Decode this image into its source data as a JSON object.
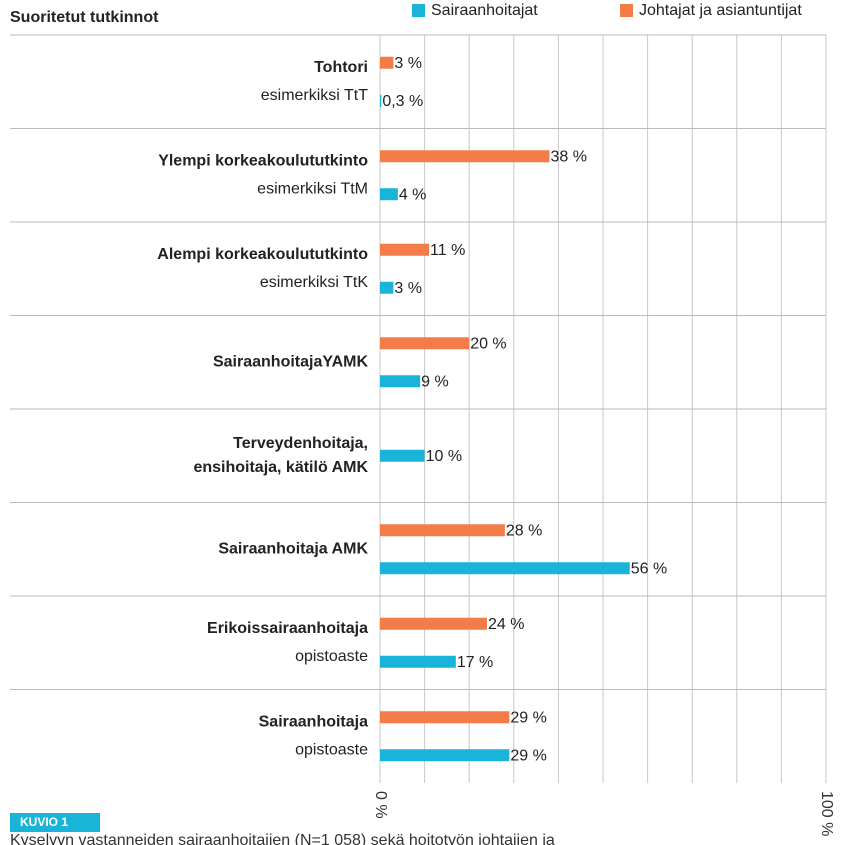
{
  "chart_data": {
    "type": "hbar",
    "title": "Suoritetut tutkinnot",
    "categories": [
      "Tohtori",
      "Ylempi korkeakoulututkinto",
      "Alempi korkeakoulututkinto",
      "SairaanhoitajaYAMK",
      "Terveydenhoitaja,\nensihoitaja, kätilö AMK",
      "Sairaanhoitaja AMK",
      "Erikoissairaanhoitaja",
      "Sairaanhoitaja"
    ],
    "category_notes": [
      "esimerkiksi TtT",
      "esimerkiksi TtM",
      "esimerkiksi TtK",
      null,
      null,
      null,
      "opistoaste",
      "opistoaste"
    ],
    "series": [
      {
        "name": "Johtajat ja asiantuntijat",
        "color": "#f47c48",
        "values": [
          3,
          38,
          11,
          20,
          null,
          28,
          24,
          29
        ],
        "value_labels": [
          "3 %",
          "38 %",
          "11 %",
          "20 %",
          null,
          "28 %",
          "24 %",
          "29 %"
        ]
      },
      {
        "name": "Sairaanhoitajat",
        "color": "#1ab4d8",
        "values": [
          0.3,
          4,
          3,
          9,
          10,
          56,
          17,
          29
        ],
        "value_labels": [
          "0,3 %",
          "4 %",
          "3 %",
          "9 %",
          "10 %",
          "56 %",
          "17 %",
          "29 %"
        ]
      }
    ],
    "legend_order": [
      1,
      0
    ],
    "xlim": [
      0,
      100
    ],
    "xticks": [
      {
        "value": 0,
        "label": "0 %"
      },
      {
        "value": 10,
        "label": null
      },
      {
        "value": 20,
        "label": null
      },
      {
        "value": 30,
        "label": null
      },
      {
        "value": 40,
        "label": null
      },
      {
        "value": 50,
        "label": null
      },
      {
        "value": 60,
        "label": null
      },
      {
        "value": 70,
        "label": null
      },
      {
        "value": 80,
        "label": null
      },
      {
        "value": 90,
        "label": null
      },
      {
        "value": 100,
        "label": "100 %"
      }
    ],
    "grid": true,
    "figure_label": "KUVIO 1",
    "caption": "Kyselyyn vastanneiden sairaanhoitajien (N=1 058) sekä hoitotyön johtajien ja"
  }
}
